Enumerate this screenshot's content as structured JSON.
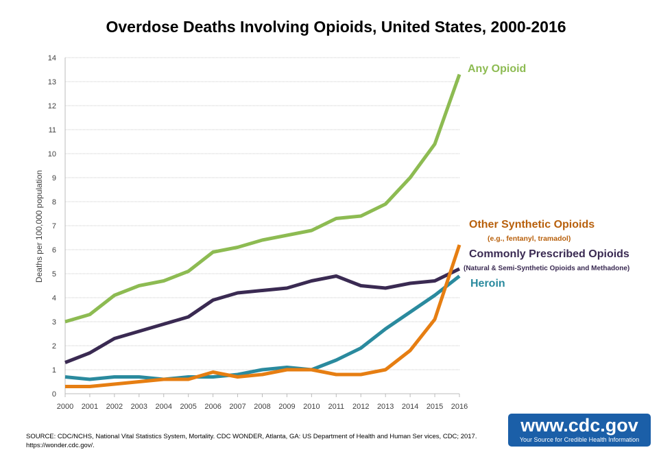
{
  "chart_data": {
    "type": "line",
    "title": "Overdose Deaths Involving Opioids, United States, 2000-2016",
    "xlabel": "",
    "ylabel": "Deaths per 100,000 population",
    "ylim": [
      0,
      14
    ],
    "yticks": [
      "0",
      "1",
      "2",
      "3",
      "4",
      "5",
      "6",
      "7",
      "8",
      "9",
      "10",
      "11",
      "12",
      "13",
      "14"
    ],
    "x": [
      "2000",
      "2001",
      "2002",
      "2003",
      "2004",
      "2005",
      "2006",
      "2007",
      "2008",
      "2009",
      "2010",
      "2011",
      "2012",
      "2013",
      "2014",
      "2015",
      "2016"
    ],
    "grid": true,
    "series": [
      {
        "name": "Any Opioid",
        "color": "#8dbb52",
        "values": [
          3.0,
          3.3,
          4.1,
          4.5,
          4.7,
          5.1,
          5.9,
          6.1,
          6.4,
          6.6,
          6.8,
          7.3,
          7.4,
          7.9,
          9.0,
          10.4,
          13.3
        ]
      },
      {
        "name": "Other Synthetic Opioids",
        "subtitle": "(e.g., fentanyl, tramadol)",
        "color": "#e67e12",
        "values": [
          0.3,
          0.3,
          0.4,
          0.5,
          0.6,
          0.6,
          0.9,
          0.7,
          0.8,
          1.0,
          1.0,
          0.8,
          0.8,
          1.0,
          1.8,
          3.1,
          6.2
        ]
      },
      {
        "name": "Commonly Prescribed Opioids",
        "subtitle": "(Natural & Semi-Synthetic Opioids and Methadone)",
        "color": "#3a2a52",
        "values": [
          1.3,
          1.7,
          2.3,
          2.6,
          2.9,
          3.2,
          3.9,
          4.2,
          4.3,
          4.4,
          4.7,
          4.9,
          4.5,
          4.4,
          4.6,
          4.7,
          5.2
        ]
      },
      {
        "name": "Heroin",
        "color": "#2a8a9e",
        "values": [
          0.7,
          0.6,
          0.7,
          0.7,
          0.6,
          0.7,
          0.7,
          0.8,
          1.0,
          1.1,
          1.0,
          1.4,
          1.9,
          2.7,
          3.4,
          4.1,
          4.9
        ]
      }
    ]
  },
  "source": "SOURCE: CDC/NCHS, National Vital Statistics System, Mortality. CDC WONDER, Atlanta, GA: US Department of Health and Human Ser vices, CDC; 2017. https://wonder.cdc.gov/.",
  "logo": {
    "url": "www.cdc.gov",
    "tagline": "Your Source for Credible Health Information"
  }
}
